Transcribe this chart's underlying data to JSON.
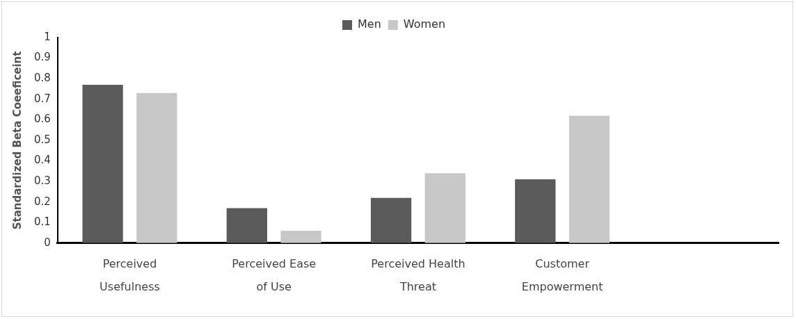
{
  "chart_data": {
    "type": "bar",
    "ylabel": "Standardized Beta Coeeficeint",
    "categories": [
      "Perceived Usefulness",
      "Perceived Ease of Use",
      "Perceived Health Threat",
      "Customer Empowerment",
      null
    ],
    "series": [
      {
        "name": "Men",
        "color": "#5a5a5a",
        "values": [
          0.77,
          0.17,
          0.22,
          0.31,
          null
        ]
      },
      {
        "name": "Women",
        "color": "#c8c8c8",
        "values": [
          0.73,
          0.06,
          0.34,
          0.62,
          null
        ]
      }
    ],
    "ylim": [
      0,
      1
    ],
    "yticks": [
      0,
      0.1,
      0.2,
      0.3,
      0.4,
      0.5,
      0.6,
      0.7,
      0.8,
      0.9,
      1
    ],
    "grid": false,
    "legend": "top"
  }
}
